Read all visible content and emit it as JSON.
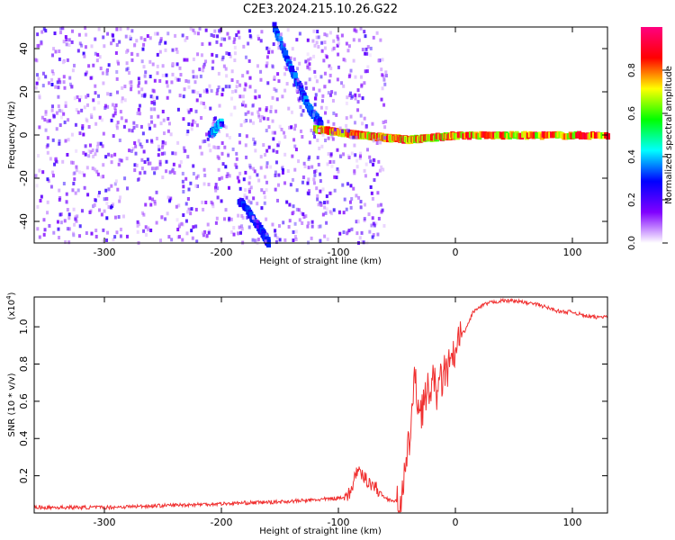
{
  "chart_data": [
    {
      "type": "heatmap",
      "title": "C2E3.2024.215.10.26.G22",
      "xlabel": "Height of straight line (km)",
      "ylabel": "Frequency (Hz)",
      "xlim": [
        -360,
        130
      ],
      "ylim": [
        -50,
        50
      ],
      "xticks": [
        -300,
        -200,
        -100,
        0,
        100
      ],
      "yticks": [
        -40,
        -20,
        0,
        20,
        40
      ],
      "colorbar": {
        "label": "Normalized spectral amplitude",
        "range": [
          0.0,
          1.0
        ],
        "ticks": [
          "0.0",
          "0.2",
          "0.4",
          "0.6",
          "0.8"
        ],
        "colormap": [
          "#ffffff",
          "#8000ff",
          "#0000ff",
          "#00ffff",
          "#00ff00",
          "#ffff00",
          "#ff0000",
          "#ff0080"
        ]
      },
      "features": [
        {
          "kind": "descending-streak",
          "points": [
            [
              -155,
              50
            ],
            [
              -140,
              30
            ],
            [
              -125,
              12
            ],
            [
              -115,
              5
            ]
          ],
          "level": 0.35
        },
        {
          "kind": "descending-streak",
          "points": [
            [
              -185,
              -30
            ],
            [
              -165,
              -45
            ],
            [
              -160,
              -50
            ]
          ],
          "level": 0.3
        },
        {
          "kind": "band",
          "points": [
            [
              -120,
              3
            ],
            [
              -80,
              0
            ],
            [
              -40,
              -2
            ],
            [
              0,
              0
            ],
            [
              130,
              0
            ]
          ],
          "level": 0.85
        },
        {
          "kind": "cluster",
          "points": [
            [
              -210,
              0
            ],
            [
              -200,
              6
            ]
          ],
          "level": 0.4
        },
        {
          "kind": "noise",
          "range_x": [
            -360,
            -60
          ],
          "range_y": [
            -50,
            50
          ],
          "level": 0.15
        }
      ]
    },
    {
      "type": "line",
      "xlabel": "Height of straight line (km)",
      "ylabel": "SNR (10 * v/v)",
      "scale_label": "(x10",
      "scale_exp": "4",
      "scale_close": ")",
      "xlim": [
        -360,
        130
      ],
      "ylim": [
        0,
        1.16
      ],
      "xticks": [
        -300,
        -200,
        -100,
        0,
        100
      ],
      "yticks": [
        "0.2",
        "0.4",
        "0.6",
        "0.8",
        "1.0"
      ],
      "color": "#f03030",
      "series": [
        {
          "x": [
            -360,
            -300,
            -250,
            -200,
            -150,
            -120,
            -100,
            -90,
            -85,
            -80,
            -70,
            -60,
            -50,
            -45,
            -40,
            -35,
            -30,
            -25,
            -20,
            -15,
            -10,
            -5,
            0,
            5,
            10,
            15,
            20,
            25,
            30,
            40,
            50,
            60,
            70,
            80,
            90,
            100,
            110,
            120,
            130
          ],
          "values": [
            0.03,
            0.03,
            0.04,
            0.05,
            0.06,
            0.07,
            0.08,
            0.1,
            0.22,
            0.2,
            0.15,
            0.08,
            0.06,
            0.1,
            0.35,
            0.7,
            0.55,
            0.62,
            0.7,
            0.65,
            0.75,
            0.78,
            0.85,
            0.95,
            1.0,
            1.08,
            1.1,
            1.12,
            1.13,
            1.14,
            1.14,
            1.13,
            1.12,
            1.1,
            1.08,
            1.08,
            1.06,
            1.05,
            1.06
          ]
        }
      ]
    }
  ]
}
